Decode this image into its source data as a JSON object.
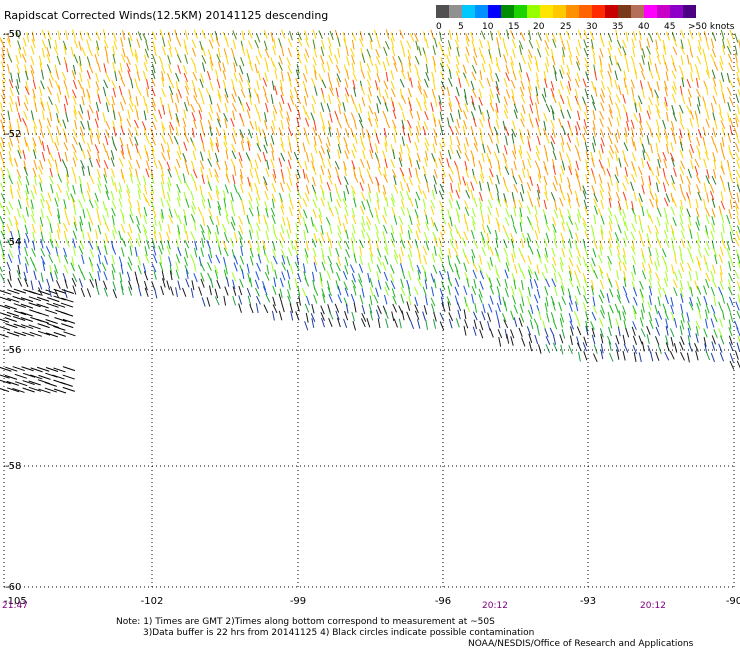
{
  "title": "Rapidscat Corrected Winds(12.5KM) 20141125 descending",
  "legend": {
    "colors": [
      "#505050",
      "#909090",
      "#00c8ff",
      "#0090ff",
      "#0000ff",
      "#008c00",
      "#1ed200",
      "#96ff00",
      "#ffe600",
      "#ffc800",
      "#ff9000",
      "#ff6400",
      "#ff2a00",
      "#c80000",
      "#7a3a1a",
      "#b46e5a",
      "#ff00ff",
      "#c800c8",
      "#8c00c8",
      "#4b0082"
    ],
    "labels": [
      "0",
      "5",
      "10",
      "15",
      "20",
      "25",
      "30",
      "35",
      "40",
      "45",
      ">50 knots"
    ]
  },
  "map": {
    "lon_ticks": [
      "-105",
      "-102",
      "-99",
      "-96",
      "-93",
      "-90"
    ],
    "lat_ticks": [
      "-50",
      "-52",
      "-54",
      "-56",
      "-58",
      "-60"
    ],
    "times": [
      "21:47",
      "20:12",
      "20:12"
    ]
  },
  "notes": {
    "line1": "Note: 1) Times are GMT 2)Times along bottom correspond to measurement at ~50S",
    "line2": "3)Data buffer is 22 hrs from 20141125 4) Black circles indicate possible contamination",
    "credit": "NOAA/NESDIS/Office of Research and Applications"
  }
}
